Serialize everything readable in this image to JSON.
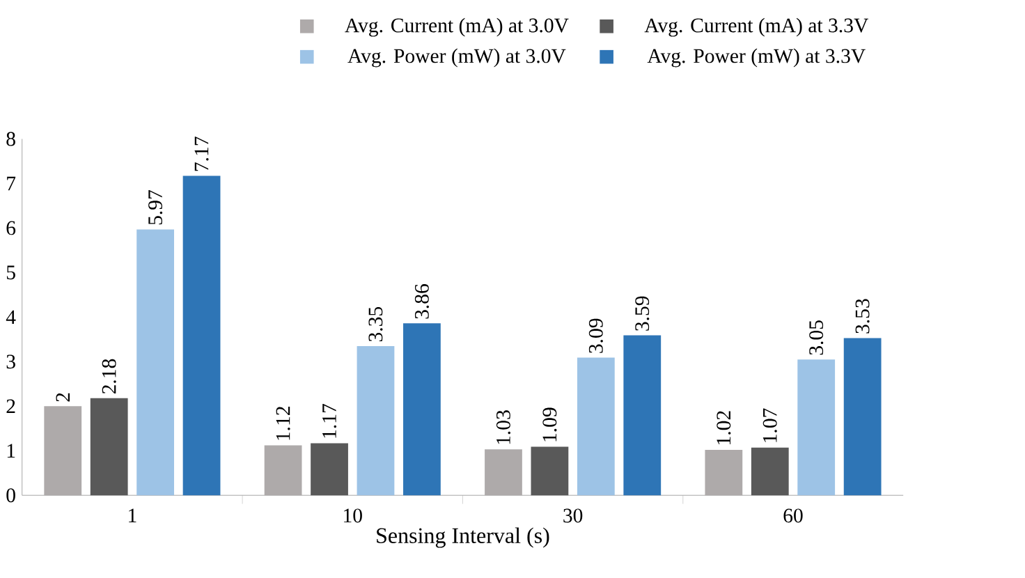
{
  "chart_data": {
    "type": "bar",
    "xlabel": "Sensing Interval (s)",
    "categories": [
      "1",
      "10",
      "30",
      "60"
    ],
    "series": [
      {
        "name": "Avg. Current (mA) at 3.0V",
        "color": "#aeaaaa",
        "values": [
          2,
          1.12,
          1.03,
          1.02
        ]
      },
      {
        "name": "Avg. Current (mA) at 3.3V",
        "color": "#595959",
        "values": [
          2.18,
          1.17,
          1.09,
          1.07
        ]
      },
      {
        "name": "Avg. Power (mW) at 3.0V",
        "color": "#9dc3e6",
        "values": [
          5.97,
          3.35,
          3.09,
          3.05
        ]
      },
      {
        "name": "Avg. Power (mW) at 3.3V",
        "color": "#2e75b6",
        "values": [
          7.17,
          3.86,
          3.59,
          3.53
        ]
      }
    ],
    "ylim": [
      0,
      8
    ],
    "yticks": [
      0,
      1,
      2,
      3,
      4,
      5,
      6,
      7,
      8
    ],
    "data_labels": true,
    "legend": "top"
  }
}
